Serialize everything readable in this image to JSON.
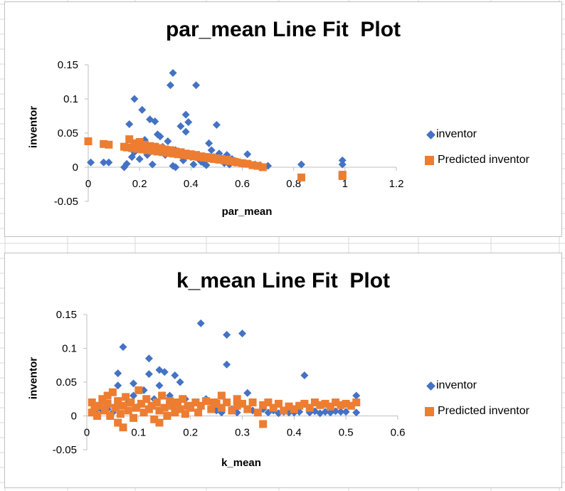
{
  "colors": {
    "inventor": "#4472c4",
    "predicted": "#ed7d31",
    "axis": "#bfbfbf",
    "sheet_grid": "#d9d9d9"
  },
  "chart_data": [
    {
      "type": "scatter",
      "title": "par_mean Line Fit  Plot",
      "xlabel": "par_mean",
      "ylabel": "inventor",
      "xlim": [
        0,
        1.2
      ],
      "ylim": [
        -0.05,
        0.15
      ],
      "x_ticks": [
        "0",
        "0.2",
        "0.4",
        "0.6",
        "0.8",
        "1",
        "1.2"
      ],
      "y_ticks": [
        "-0.05",
        "0",
        "0.05",
        "0.1",
        "0.15"
      ],
      "grid": false,
      "legend_position": "right",
      "series": [
        {
          "name": "inventor",
          "marker": "diamond",
          "points": [
            [
              0.01,
              0.007
            ],
            [
              0.06,
              0.007
            ],
            [
              0.08,
              0.007
            ],
            [
              0.14,
              0.0
            ],
            [
              0.15,
              0.005
            ],
            [
              0.16,
              0.063
            ],
            [
              0.17,
              0.015
            ],
            [
              0.18,
              0.022
            ],
            [
              0.18,
              0.1
            ],
            [
              0.19,
              0.03
            ],
            [
              0.2,
              0.012
            ],
            [
              0.21,
              0.084
            ],
            [
              0.22,
              0.04
            ],
            [
              0.23,
              0.018
            ],
            [
              0.24,
              0.07
            ],
            [
              0.25,
              0.004
            ],
            [
              0.26,
              0.067
            ],
            [
              0.27,
              0.048
            ],
            [
              0.28,
              0.045
            ],
            [
              0.29,
              0.03
            ],
            [
              0.3,
              0.018
            ],
            [
              0.31,
              0.038
            ],
            [
              0.32,
              0.12
            ],
            [
              0.33,
              0.002
            ],
            [
              0.33,
              0.138
            ],
            [
              0.34,
              0.025
            ],
            [
              0.34,
              0.0
            ],
            [
              0.35,
              0.021
            ],
            [
              0.36,
              0.06
            ],
            [
              0.37,
              0.01
            ],
            [
              0.38,
              0.077
            ],
            [
              0.38,
              0.052
            ],
            [
              0.39,
              0.066
            ],
            [
              0.4,
              0.015
            ],
            [
              0.41,
              0.004
            ],
            [
              0.42,
              0.12
            ],
            [
              0.43,
              0.012
            ],
            [
              0.44,
              0.008
            ],
            [
              0.45,
              0.006
            ],
            [
              0.46,
              0.003
            ],
            [
              0.47,
              0.035
            ],
            [
              0.48,
              0.025
            ],
            [
              0.49,
              0.015
            ],
            [
              0.5,
              0.062
            ],
            [
              0.51,
              0.02
            ],
            [
              0.52,
              0.01
            ],
            [
              0.53,
              0.006
            ],
            [
              0.54,
              0.018
            ],
            [
              0.55,
              0.004
            ],
            [
              0.56,
              0.012
            ],
            [
              0.58,
              0.008
            ],
            [
              0.6,
              0.005
            ],
            [
              0.62,
              0.019
            ],
            [
              0.65,
              0.004
            ],
            [
              0.67,
              0.003
            ],
            [
              0.7,
              0.002
            ],
            [
              0.83,
              0.004
            ],
            [
              0.99,
              0.01
            ],
            [
              0.99,
              0.004
            ]
          ]
        },
        {
          "name": "Predicted inventor",
          "marker": "square",
          "points": [
            [
              0.0,
              0.038
            ],
            [
              0.06,
              0.034
            ],
            [
              0.08,
              0.033
            ],
            [
              0.14,
              0.03
            ],
            [
              0.15,
              0.029
            ],
            [
              0.16,
              0.041
            ],
            [
              0.17,
              0.028
            ],
            [
              0.18,
              0.035
            ],
            [
              0.19,
              0.027
            ],
            [
              0.2,
              0.037
            ],
            [
              0.21,
              0.026
            ],
            [
              0.22,
              0.033
            ],
            [
              0.23,
              0.025
            ],
            [
              0.24,
              0.031
            ],
            [
              0.25,
              0.024
            ],
            [
              0.26,
              0.03
            ],
            [
              0.27,
              0.023
            ],
            [
              0.28,
              0.028
            ],
            [
              0.29,
              0.022
            ],
            [
              0.3,
              0.026
            ],
            [
              0.31,
              0.021
            ],
            [
              0.32,
              0.025
            ],
            [
              0.33,
              0.02
            ],
            [
              0.34,
              0.023
            ],
            [
              0.35,
              0.019
            ],
            [
              0.36,
              0.022
            ],
            [
              0.37,
              0.018
            ],
            [
              0.38,
              0.02
            ],
            [
              0.39,
              0.017
            ],
            [
              0.4,
              0.019
            ],
            [
              0.41,
              0.016
            ],
            [
              0.42,
              0.018
            ],
            [
              0.43,
              0.015
            ],
            [
              0.44,
              0.016
            ],
            [
              0.45,
              0.014
            ],
            [
              0.46,
              0.015
            ],
            [
              0.47,
              0.013
            ],
            [
              0.48,
              0.014
            ],
            [
              0.49,
              0.012
            ],
            [
              0.5,
              0.013
            ],
            [
              0.51,
              0.011
            ],
            [
              0.52,
              0.012
            ],
            [
              0.53,
              0.01
            ],
            [
              0.54,
              0.011
            ],
            [
              0.55,
              0.009
            ],
            [
              0.56,
              0.009
            ],
            [
              0.57,
              0.008
            ],
            [
              0.58,
              0.007
            ],
            [
              0.6,
              0.006
            ],
            [
              0.62,
              0.005
            ],
            [
              0.64,
              0.003
            ],
            [
              0.66,
              0.002
            ],
            [
              0.68,
              0.0
            ],
            [
              0.83,
              -0.015
            ],
            [
              0.99,
              -0.011
            ],
            [
              0.99,
              -0.013
            ]
          ]
        }
      ]
    },
    {
      "type": "scatter",
      "title": "k_mean Line Fit  Plot",
      "xlabel": "k_mean",
      "ylabel": "inventor",
      "xlim": [
        0,
        0.6
      ],
      "ylim": [
        -0.05,
        0.15
      ],
      "x_ticks": [
        "0",
        "0.1",
        "0.2",
        "0.3",
        "0.4",
        "0.5",
        "0.6"
      ],
      "y_ticks": [
        "-0.05",
        "0",
        "0.05",
        "0.1",
        "0.15"
      ],
      "grid": false,
      "legend_position": "right",
      "series": [
        {
          "name": "inventor",
          "marker": "diamond",
          "points": [
            [
              0.01,
              0.005
            ],
            [
              0.02,
              0.01
            ],
            [
              0.03,
              0.008
            ],
            [
              0.04,
              0.01
            ],
            [
              0.05,
              0.005
            ],
            [
              0.06,
              0.063
            ],
            [
              0.06,
              0.045
            ],
            [
              0.07,
              0.102
            ],
            [
              0.08,
              0.02
            ],
            [
              0.09,
              0.03
            ],
            [
              0.09,
              0.048
            ],
            [
              0.1,
              0.015
            ],
            [
              0.11,
              0.038
            ],
            [
              0.12,
              0.062
            ],
            [
              0.12,
              0.085
            ],
            [
              0.13,
              0.025
            ],
            [
              0.14,
              0.068
            ],
            [
              0.14,
              0.045
            ],
            [
              0.15,
              0.065
            ],
            [
              0.16,
              0.03
            ],
            [
              0.17,
              0.06
            ],
            [
              0.18,
              0.05
            ],
            [
              0.19,
              0.025
            ],
            [
              0.2,
              0.015
            ],
            [
              0.21,
              0.02
            ],
            [
              0.22,
              0.137
            ],
            [
              0.23,
              0.025
            ],
            [
              0.24,
              0.01
            ],
            [
              0.25,
              0.008
            ],
            [
              0.26,
              0.005
            ],
            [
              0.27,
              0.12
            ],
            [
              0.27,
              0.076
            ],
            [
              0.28,
              0.01
            ],
            [
              0.29,
              0.005
            ],
            [
              0.3,
              0.122
            ],
            [
              0.31,
              0.034
            ],
            [
              0.32,
              0.008
            ],
            [
              0.33,
              0.005
            ],
            [
              0.34,
              0.01
            ],
            [
              0.35,
              0.005
            ],
            [
              0.36,
              0.008
            ],
            [
              0.37,
              0.004
            ],
            [
              0.38,
              0.006
            ],
            [
              0.39,
              0.005
            ],
            [
              0.4,
              0.005
            ],
            [
              0.41,
              0.006
            ],
            [
              0.42,
              0.06
            ],
            [
              0.43,
              0.005
            ],
            [
              0.44,
              0.007
            ],
            [
              0.45,
              0.004
            ],
            [
              0.46,
              0.006
            ],
            [
              0.47,
              0.005
            ],
            [
              0.48,
              0.007
            ],
            [
              0.49,
              0.006
            ],
            [
              0.5,
              0.006
            ],
            [
              0.52,
              0.005
            ],
            [
              0.52,
              0.03
            ]
          ]
        },
        {
          "name": "Predicted inventor",
          "marker": "square",
          "points": [
            [
              0.01,
              0.02
            ],
            [
              0.01,
              0.005
            ],
            [
              0.015,
              0.012
            ],
            [
              0.02,
              0.0
            ],
            [
              0.025,
              0.015
            ],
            [
              0.03,
              0.025
            ],
            [
              0.035,
              0.008
            ],
            [
              0.04,
              0.018
            ],
            [
              0.045,
              0.0
            ],
            [
              0.05,
              0.035
            ],
            [
              0.055,
              0.012
            ],
            [
              0.06,
              0.022
            ],
            [
              0.065,
              0.003
            ],
            [
              0.07,
              0.015
            ],
            [
              0.075,
              0.028
            ],
            [
              0.08,
              0.008
            ],
            [
              0.085,
              0.02
            ],
            [
              0.09,
              -0.003
            ],
            [
              0.095,
              0.012
            ],
            [
              0.1,
              0.038
            ],
            [
              0.105,
              0.018
            ],
            [
              0.11,
              0.005
            ],
            [
              0.115,
              0.025
            ],
            [
              0.12,
              0.01
            ],
            [
              0.125,
              0.015
            ],
            [
              0.13,
              -0.005
            ],
            [
              0.135,
              0.02
            ],
            [
              0.14,
              0.008
            ],
            [
              0.145,
              0.03
            ],
            [
              0.15,
              0.012
            ],
            [
              0.155,
              0.0
            ],
            [
              0.16,
              0.022
            ],
            [
              0.165,
              0.015
            ],
            [
              0.17,
              0.005
            ],
            [
              0.175,
              0.02
            ],
            [
              0.18,
              0.01
            ],
            [
              0.185,
              0.025
            ],
            [
              0.19,
              0.003
            ],
            [
              0.195,
              0.015
            ],
            [
              0.2,
              0.012
            ],
            [
              0.21,
              0.02
            ],
            [
              0.215,
              0.005
            ],
            [
              0.22,
              0.015
            ],
            [
              0.23,
              0.022
            ],
            [
              0.24,
              0.01
            ],
            [
              0.245,
              0.02
            ],
            [
              0.25,
              0.018
            ],
            [
              0.26,
              0.012
            ],
            [
              0.27,
              0.02
            ],
            [
              0.28,
              0.008
            ],
            [
              0.29,
              0.015
            ],
            [
              0.3,
              0.018
            ],
            [
              0.31,
              0.01
            ],
            [
              0.32,
              0.02
            ],
            [
              0.33,
              0.005
            ],
            [
              0.34,
              0.016
            ],
            [
              0.35,
              0.02
            ],
            [
              0.36,
              0.012
            ],
            [
              0.37,
              0.018
            ],
            [
              0.38,
              0.008
            ],
            [
              0.39,
              0.014
            ],
            [
              0.4,
              0.01
            ],
            [
              0.41,
              0.015
            ],
            [
              0.42,
              0.018
            ],
            [
              0.43,
              0.012
            ],
            [
              0.44,
              0.02
            ],
            [
              0.45,
              0.016
            ],
            [
              0.46,
              0.018
            ],
            [
              0.47,
              0.014
            ],
            [
              0.48,
              0.02
            ],
            [
              0.49,
              0.016
            ],
            [
              0.5,
              0.018
            ],
            [
              0.51,
              0.015
            ],
            [
              0.52,
              0.02
            ],
            [
              0.07,
              -0.017
            ],
            [
              0.14,
              -0.01
            ],
            [
              0.34,
              -0.012
            ],
            [
              0.04,
              0.03
            ],
            [
              0.06,
              -0.01
            ],
            [
              0.26,
              0.03
            ],
            [
              0.29,
              0.025
            ]
          ]
        }
      ]
    }
  ]
}
